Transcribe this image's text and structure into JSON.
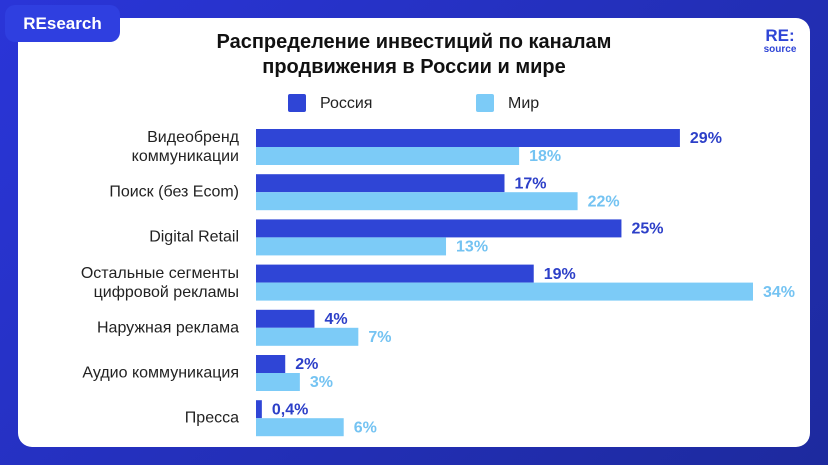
{
  "header": {
    "badge": "REsearch",
    "logo_top": "RE:",
    "logo_bottom": "source"
  },
  "chart_data": {
    "type": "hbar",
    "title": "Распределение инвестиций по каналам\nпродвижения в России и мире",
    "categories": [
      "Видеобренд\nкоммуникации",
      "Поиск (без Ecom)",
      "Digital Retail",
      "Остальные сегменты\nцифровой рекламы",
      "Наружная реклама",
      "Аудио коммуникация",
      "Пресса"
    ],
    "series": [
      {
        "name": "Россия",
        "color": "#2f45d6",
        "label_color": "#2c3fc8",
        "values": [
          29,
          17,
          25,
          19,
          4,
          2,
          0.4
        ],
        "value_labels": [
          "29%",
          "17%",
          "25%",
          "19%",
          "4%",
          "2%",
          "0,4%"
        ]
      },
      {
        "name": "Мир",
        "color": "#7ccbf7",
        "label_color": "#74c3f2",
        "values": [
          18,
          22,
          13,
          34,
          7,
          3,
          6
        ],
        "value_labels": [
          "18%",
          "22%",
          "13%",
          "34%",
          "7%",
          "3%",
          "6%"
        ]
      }
    ]
  }
}
